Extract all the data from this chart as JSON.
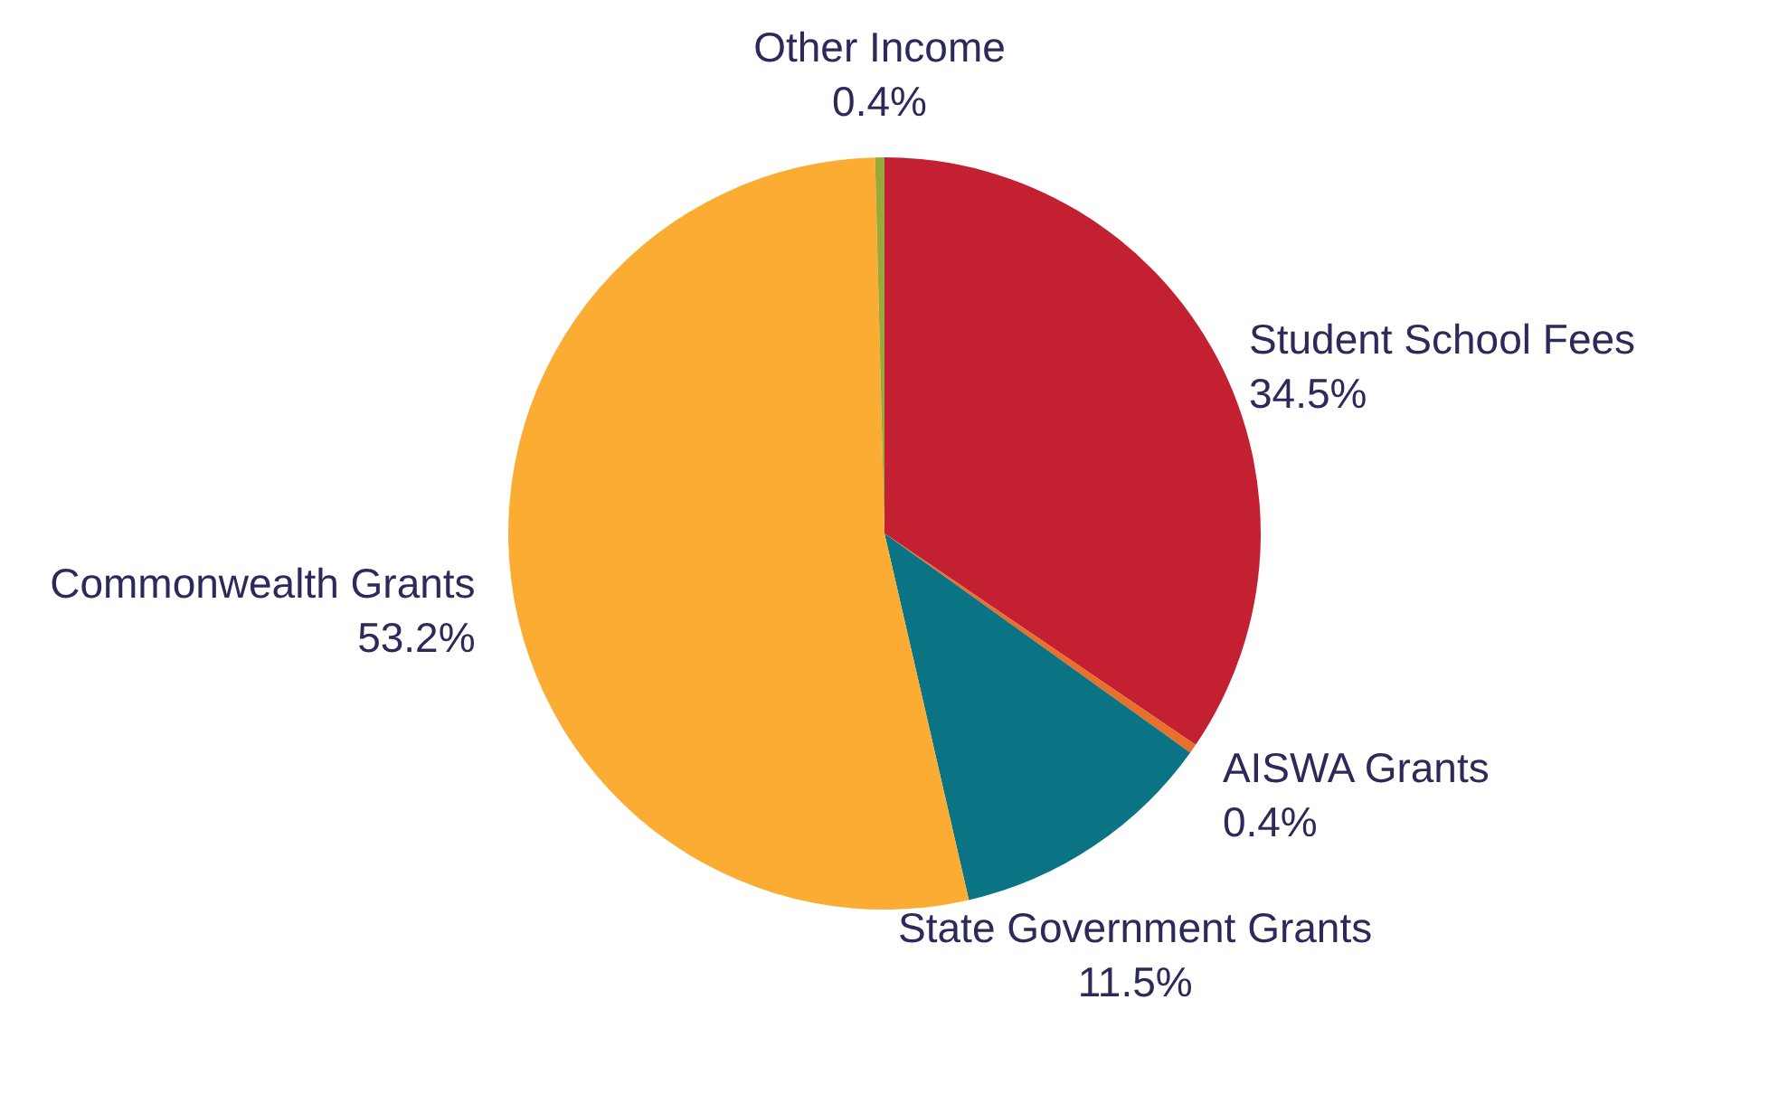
{
  "chart_data": {
    "type": "pie",
    "categories": [
      "Student School Fees",
      "AISWA Grants",
      "State Government Grants",
      "Commonwealth Grants",
      "Other Income"
    ],
    "values": [
      34.5,
      0.4,
      11.5,
      53.2,
      0.4
    ],
    "colors": [
      "#c32032",
      "#e8702a",
      "#0a7485",
      "#fbad33",
      "#9aa83a"
    ],
    "value_labels": [
      "34.5%",
      "0.4%",
      "11.5%",
      "53.2%",
      "0.4%"
    ]
  }
}
